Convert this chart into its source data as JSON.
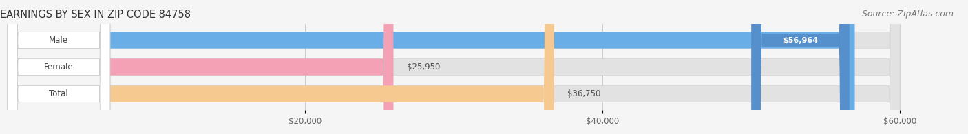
{
  "title": "EARNINGS BY SEX IN ZIP CODE 84758",
  "source": "Source: ZipAtlas.com",
  "categories": [
    "Male",
    "Female",
    "Total"
  ],
  "values": [
    56964,
    25950,
    36750
  ],
  "bar_colors": [
    "#6aaee8",
    "#f4a0b5",
    "#f5c990"
  ],
  "value_labels": [
    "$56,964",
    "$25,950",
    "$36,750"
  ],
  "value_label_inside": [
    true,
    false,
    false
  ],
  "xmin": 0,
  "xmax": 60000,
  "xticks": [
    20000,
    40000,
    60000
  ],
  "xtick_labels": [
    "$20,000",
    "$40,000",
    "$60,000"
  ],
  "background_color": "#f5f5f5",
  "bar_bg_color": "#e2e2e2",
  "title_fontsize": 10.5,
  "source_fontsize": 9,
  "bar_height": 0.62,
  "label_pill_color": "white",
  "label_pill_edge": "#cccccc"
}
